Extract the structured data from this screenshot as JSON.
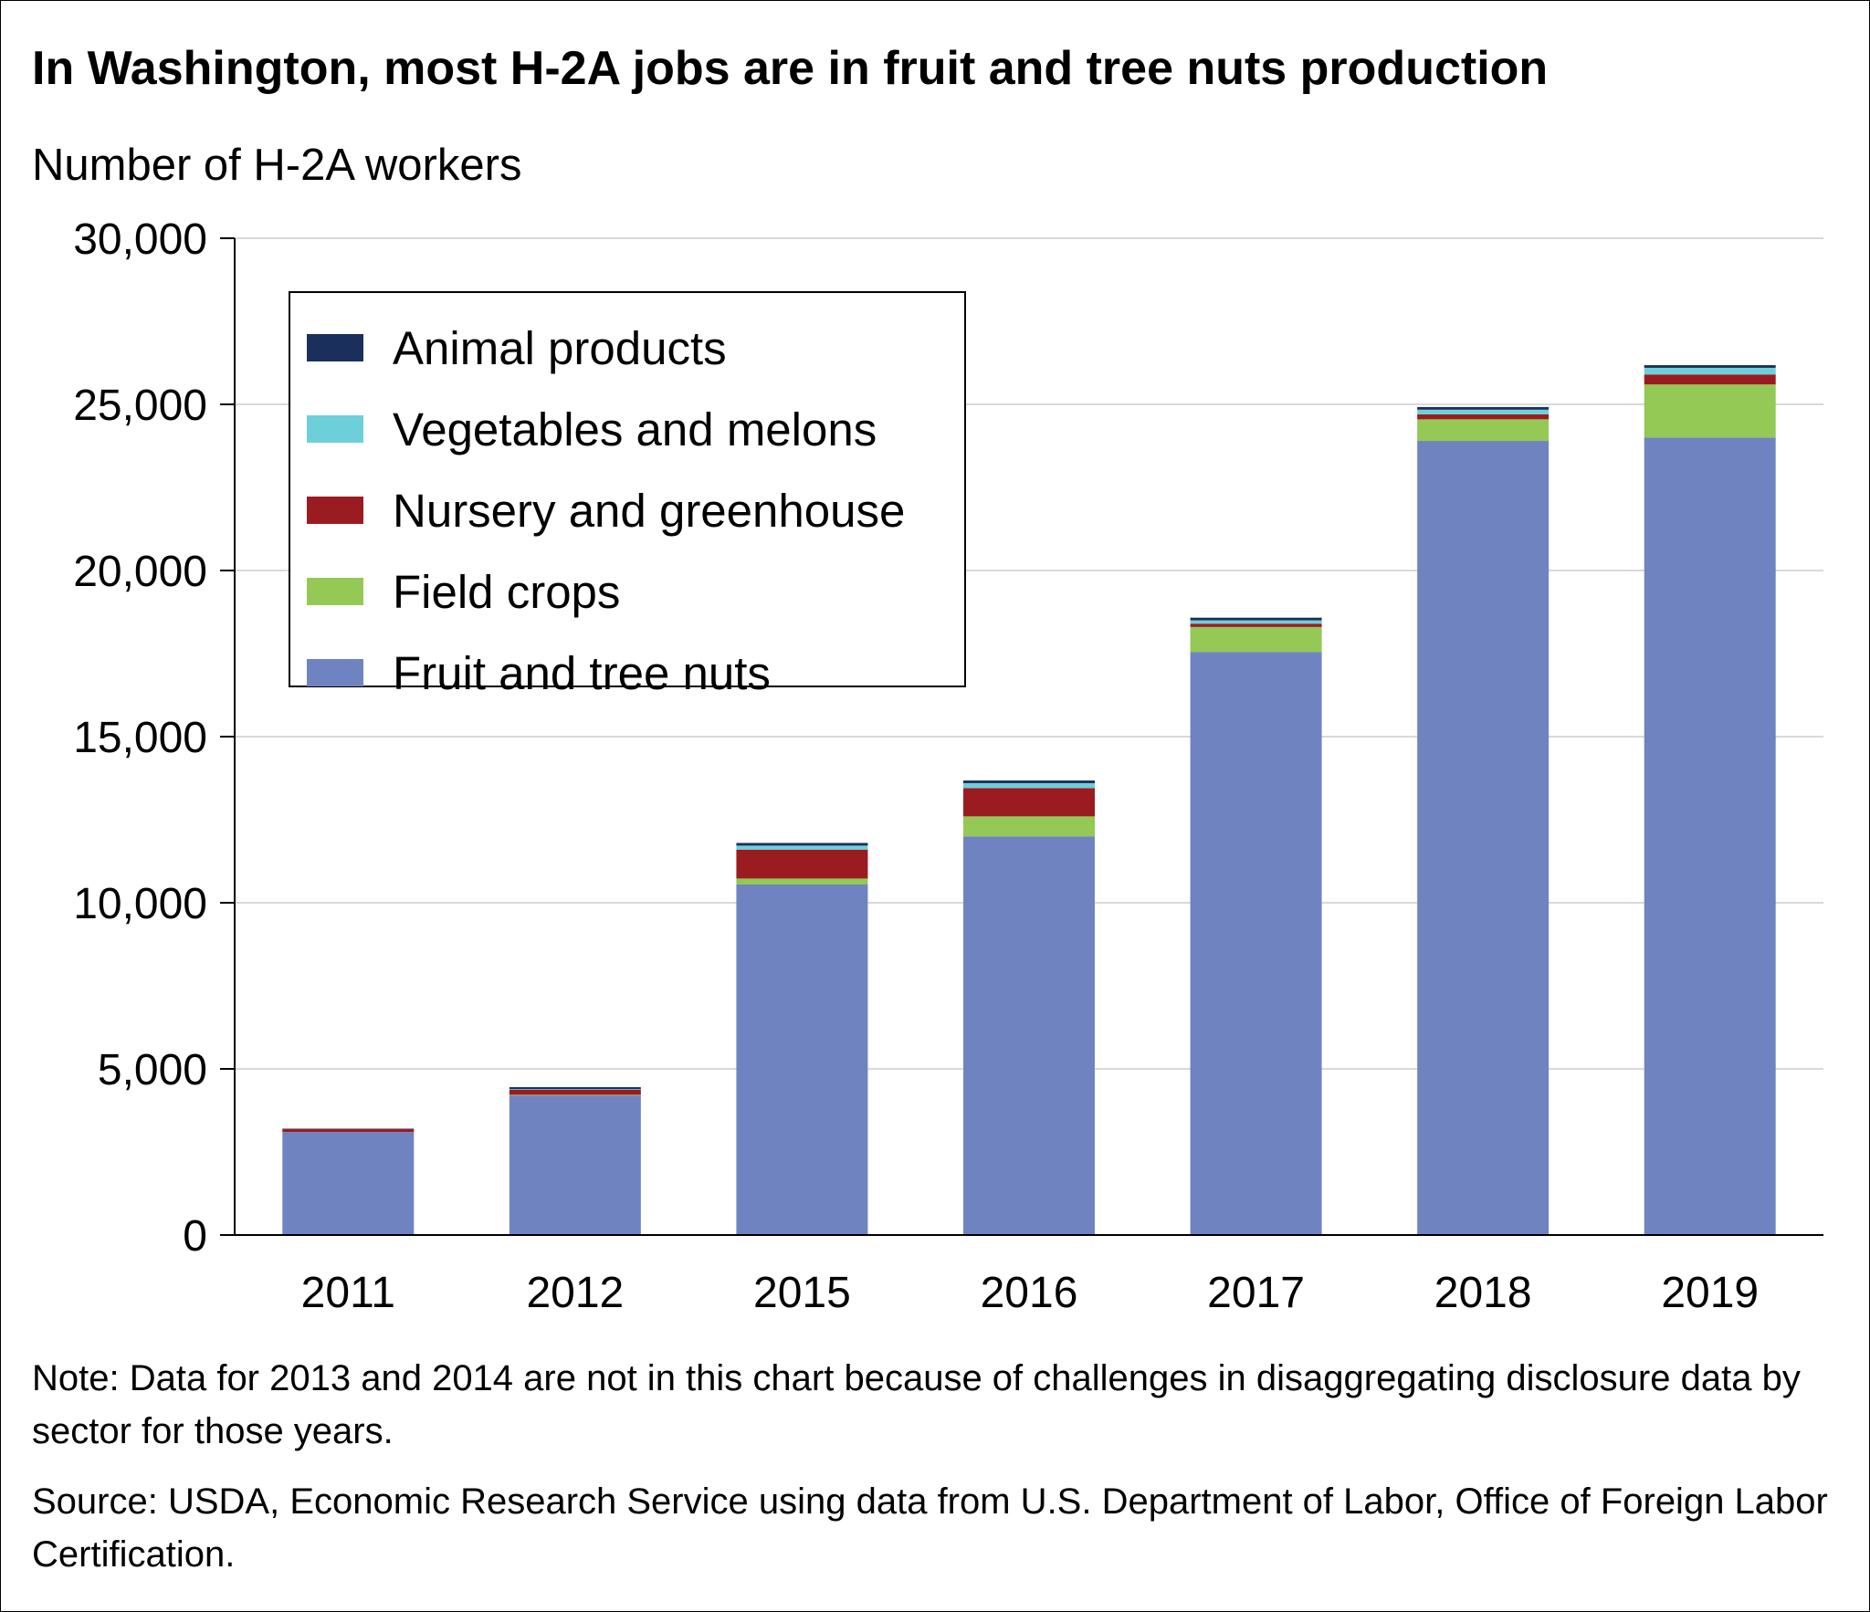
{
  "title": "In Washington, most H-2A jobs are in fruit and tree nuts production",
  "y_axis_label": "Number of H-2A workers",
  "note": "Note: Data for 2013 and 2014 are not in this chart because of challenges in disaggregating disclosure data by sector for those years.",
  "source": "Source: USDA, Economic Research Service using data from U.S. Department of Labor, Office of Foreign Labor Certification.",
  "colors": {
    "animal_products": "#1b2f5c",
    "vegetables_and_melons": "#6ccfda",
    "nursery_and_greenhouse": "#9b1c20",
    "field_crops": "#93c954",
    "fruit_and_tree_nuts": "#7083c1",
    "gridline": "#d9d9d9",
    "axis": "#000000"
  },
  "legend": [
    {
      "label": "Animal products",
      "color": "#1b2f5c"
    },
    {
      "label": "Vegetables and melons",
      "color": "#6ccfda"
    },
    {
      "label": "Nursery and greenhouse",
      "color": "#9b1c20"
    },
    {
      "label": "Field crops",
      "color": "#93c954"
    },
    {
      "label": "Fruit and tree nuts",
      "color": "#7083c1"
    }
  ],
  "chart_data": {
    "type": "bar",
    "stacked": true,
    "categories": [
      "2011",
      "2012",
      "2015",
      "2016",
      "2017",
      "2018",
      "2019"
    ],
    "series": [
      {
        "name": "Fruit and tree nuts",
        "color": "#7083c1",
        "values": [
          3100,
          4200,
          10550,
          12000,
          17550,
          23900,
          24000
        ]
      },
      {
        "name": "Field crops",
        "color": "#93c954",
        "values": [
          0,
          20,
          180,
          600,
          750,
          650,
          1600
        ]
      },
      {
        "name": "Nursery and greenhouse",
        "color": "#9b1c20",
        "values": [
          90,
          150,
          870,
          850,
          100,
          150,
          300
        ]
      },
      {
        "name": "Vegetables and melons",
        "color": "#6ccfda",
        "values": [
          0,
          20,
          120,
          150,
          100,
          140,
          200
        ]
      },
      {
        "name": "Animal products",
        "color": "#1b2f5c",
        "values": [
          10,
          60,
          80,
          80,
          80,
          80,
          80
        ]
      }
    ],
    "ylim": [
      0,
      30000
    ],
    "yticks": [
      0,
      5000,
      10000,
      15000,
      20000,
      25000,
      30000
    ],
    "ytick_labels": [
      "0",
      "5,000",
      "10,000",
      "15,000",
      "20,000",
      "25,000",
      "30,000"
    ],
    "ylabel": "Number of H-2A workers",
    "xlabel": "",
    "grid": true,
    "legend_position": "top-left"
  }
}
